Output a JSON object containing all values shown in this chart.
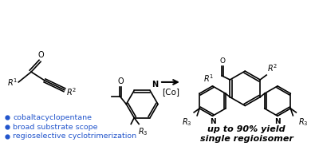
{
  "background_color": "#ffffff",
  "bullet_text_color": "#2255cc",
  "bullet_points": [
    "cobaltacyclopentane",
    "broad substrate scope",
    "regioselective cyclotrimerization"
  ],
  "result_text_line1": "up to 90% yield",
  "result_text_line2": "single regioisomer",
  "catalyst_label": "[Co]",
  "figsize": [
    4.0,
    1.93
  ],
  "dpi": 100
}
